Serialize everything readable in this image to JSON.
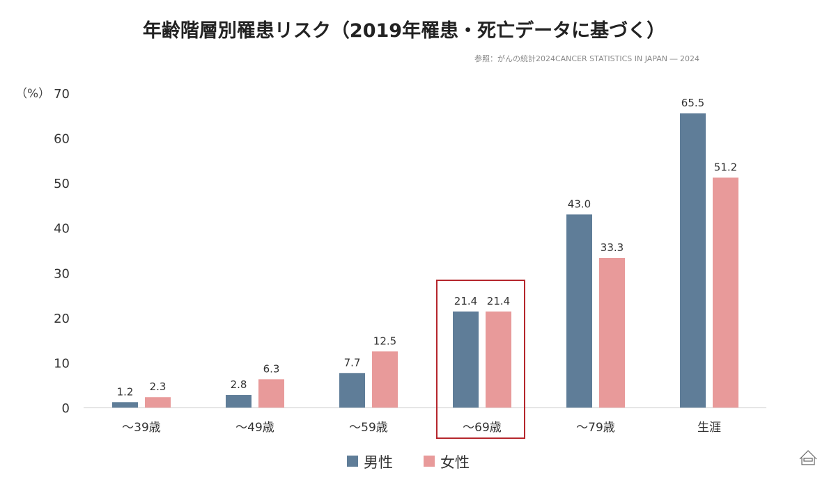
{
  "chart_data": {
    "type": "bar",
    "title": "年齢階層別罹患リスク（2019年罹患・死亡データに基づく）",
    "source": "参照：がんの統計2024CANCER STATISTICS IN JAPAN ― 2024",
    "ylabel": "（%）",
    "ylim": [
      0,
      70
    ],
    "yticks": [
      0,
      10,
      20,
      30,
      40,
      50,
      60,
      70
    ],
    "categories": [
      "〜39歳",
      "〜49歳",
      "〜59歳",
      "〜69歳",
      "〜79歳",
      "生涯"
    ],
    "series": [
      {
        "name": "男性",
        "color": "#5f7d98",
        "values": [
          1.2,
          2.8,
          7.7,
          21.4,
          43.0,
          65.5
        ]
      },
      {
        "name": "女性",
        "color": "#e89a9a",
        "values": [
          2.3,
          6.3,
          12.5,
          21.4,
          33.3,
          51.2
        ]
      }
    ],
    "highlight_category": "〜69歳",
    "highlight_color": "#b5262c",
    "legend": "bottom-center"
  }
}
